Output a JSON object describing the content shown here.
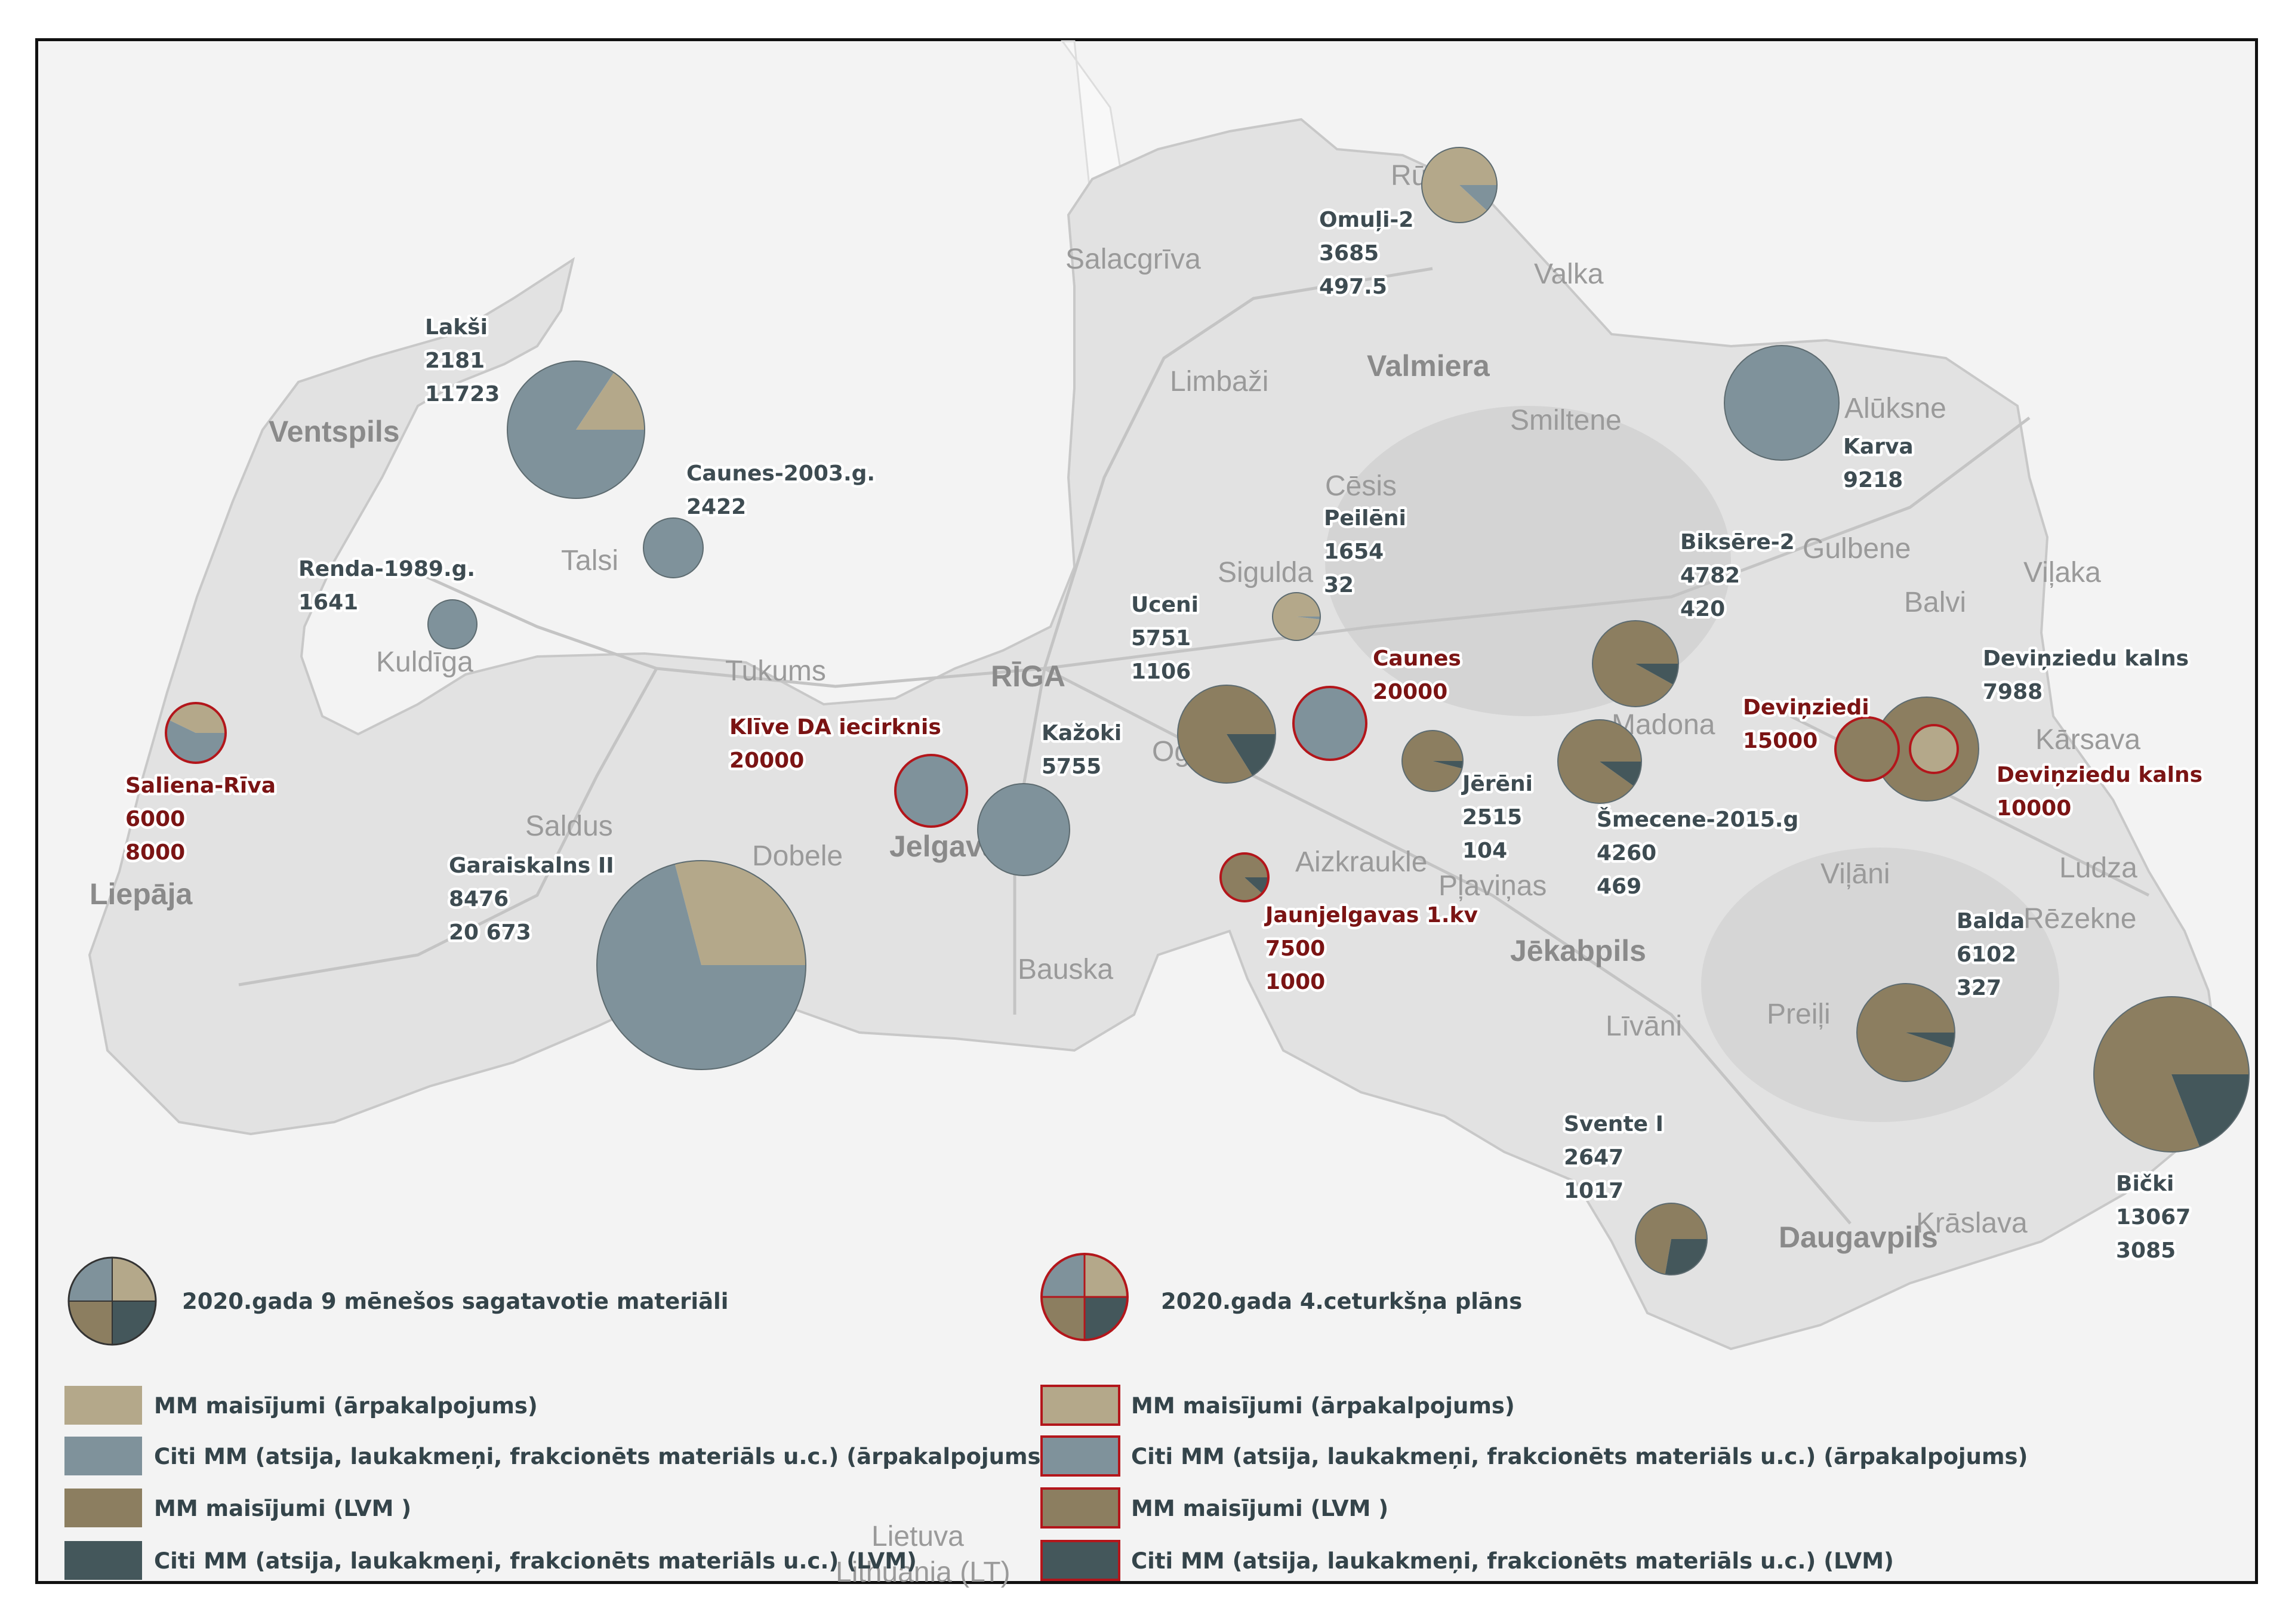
{
  "colors": {
    "mm_outsourced": "#b4a88a",
    "other_outsourced": "#7f929b",
    "mm_lvm": "#8c7e60",
    "other_lvm": "#44575b",
    "plan_border": "#b3161b",
    "label_actual": "#3e4c52",
    "label_plan": "#7b1414"
  },
  "map": {
    "cities": [
      "Ventspils",
      "Talsi",
      "Kuldīga",
      "Tukums",
      "RĪGA",
      "Saldus",
      "Dobele",
      "Jelgava",
      "Bauska",
      "Liepāja",
      "Salacgrīva",
      "Limbaži",
      "Valmiera",
      "Rūjiena",
      "Valka",
      "Smiltene",
      "Cēsis",
      "Sigulda",
      "Alūksne",
      "Gulbene",
      "Balvi",
      "Viļaka",
      "Madona",
      "Ogre",
      "Aizkraukle",
      "Pļaviņas",
      "Jēkabpils",
      "Līvāni",
      "Preiļi",
      "Viļāni",
      "Ludza",
      "Rēzekne",
      "Kārsava",
      "Daugavpils",
      "Krāslava",
      "Lietuva",
      "Lithuania (LT)"
    ]
  },
  "sites": [
    {
      "name": "Omuļi-2",
      "values": [
        "3685",
        "497.5"
      ],
      "type": "actual",
      "slices": [
        {
          "c": "mm_outsourced",
          "v": 3685
        },
        {
          "c": "other_outsourced",
          "v": 497.5
        }
      ]
    },
    {
      "name": "Lakši",
      "values": [
        "2181",
        "11723"
      ],
      "type": "actual",
      "slices": [
        {
          "c": "mm_outsourced",
          "v": 2181
        },
        {
          "c": "other_outsourced",
          "v": 11723
        }
      ]
    },
    {
      "name": "Caunes-2003.g.",
      "values": [
        "2422"
      ],
      "type": "actual",
      "slices": [
        {
          "c": "other_outsourced",
          "v": 2422
        }
      ]
    },
    {
      "name": "Renda-1989.g.",
      "values": [
        "1641"
      ],
      "type": "actual",
      "slices": [
        {
          "c": "other_outsourced",
          "v": 1641
        }
      ]
    },
    {
      "name": "Saliena-Rīva",
      "values": [
        "6000",
        "8000"
      ],
      "type": "plan",
      "slices": [
        {
          "c": "mm_outsourced",
          "v": 6000
        },
        {
          "c": "other_outsourced",
          "v": 8000
        }
      ]
    },
    {
      "name": "Garaiskalns II",
      "values": [
        "8476",
        "20 673"
      ],
      "type": "actual",
      "slices": [
        {
          "c": "mm_outsourced",
          "v": 8476
        },
        {
          "c": "other_outsourced",
          "v": 20673
        }
      ]
    },
    {
      "name": "Klīve DA iecirknis",
      "values": [
        "20000"
      ],
      "type": "plan",
      "slices": [
        {
          "c": "other_outsourced",
          "v": 20000
        }
      ]
    },
    {
      "name": "Kažoki",
      "values": [
        "5755"
      ],
      "type": "actual",
      "slices": [
        {
          "c": "other_outsourced",
          "v": 5755
        }
      ]
    },
    {
      "name": "Uceni",
      "values": [
        "5751",
        "1106"
      ],
      "type": "actual",
      "slices": [
        {
          "c": "mm_lvm",
          "v": 5751
        },
        {
          "c": "other_lvm",
          "v": 1106
        }
      ]
    },
    {
      "name": "Peilēni",
      "values": [
        "1654",
        "32"
      ],
      "type": "actual",
      "slices": [
        {
          "c": "mm_outsourced",
          "v": 1654
        },
        {
          "c": "other_outsourced",
          "v": 32
        }
      ]
    },
    {
      "name": "Caunes",
      "values": [
        "20000"
      ],
      "type": "plan",
      "slices": [
        {
          "c": "other_outsourced",
          "v": 20000
        }
      ]
    },
    {
      "name": "Jaunjelgavas 1.kv",
      "values": [
        "7500",
        "1000"
      ],
      "type": "plan",
      "slices": [
        {
          "c": "mm_lvm",
          "v": 7500
        },
        {
          "c": "other_lvm",
          "v": 1000
        }
      ]
    },
    {
      "name": "Jērēni",
      "values": [
        "2515",
        "104"
      ],
      "type": "actual",
      "slices": [
        {
          "c": "mm_lvm",
          "v": 2515
        },
        {
          "c": "other_lvm",
          "v": 104
        }
      ]
    },
    {
      "name": "Biksēre-2",
      "values": [
        "4782",
        "420"
      ],
      "type": "actual",
      "slices": [
        {
          "c": "mm_lvm",
          "v": 4782
        },
        {
          "c": "other_lvm",
          "v": 420
        }
      ]
    },
    {
      "name": "Šmecene-2015.g",
      "values": [
        "4260",
        "469"
      ],
      "type": "actual",
      "slices": [
        {
          "c": "mm_lvm",
          "v": 4260
        },
        {
          "c": "other_lvm",
          "v": 469
        }
      ]
    },
    {
      "name": "Karva",
      "values": [
        "9218"
      ],
      "type": "actual",
      "slices": [
        {
          "c": "other_outsourced",
          "v": 9218
        }
      ]
    },
    {
      "name": "Deviņziedu kalns",
      "values": [
        "7988"
      ],
      "type": "actual",
      "slices": [
        {
          "c": "mm_lvm",
          "v": 7988
        }
      ]
    },
    {
      "name": "Deviņziedi",
      "values": [
        "15000"
      ],
      "type": "plan",
      "slices": [
        {
          "c": "mm_lvm",
          "v": 15000
        }
      ]
    },
    {
      "name": "Deviņziedu kalns",
      "values": [
        "10000"
      ],
      "type": "plan",
      "slices": [
        {
          "c": "mm_outsourced",
          "v": 10000
        }
      ]
    },
    {
      "name": "Balda",
      "values": [
        "6102",
        "327"
      ],
      "type": "actual",
      "slices": [
        {
          "c": "mm_lvm",
          "v": 6102
        },
        {
          "c": "other_lvm",
          "v": 327
        }
      ]
    },
    {
      "name": "Bički",
      "values": [
        "13067",
        "3085"
      ],
      "type": "actual",
      "slices": [
        {
          "c": "mm_lvm",
          "v": 13067
        },
        {
          "c": "other_lvm",
          "v": 3085
        }
      ]
    },
    {
      "name": "Svente I",
      "values": [
        "2647",
        "1017"
      ],
      "type": "actual",
      "slices": [
        {
          "c": "mm_lvm",
          "v": 2647
        },
        {
          "c": "other_lvm",
          "v": 1017
        }
      ]
    }
  ],
  "legend": {
    "actual_title": "2020.gada 9 mēnešos sagatavotie materiāli",
    "plan_title": "2020.gada 4.ceturkšņa plāns",
    "items": [
      {
        "label": "MM maisījumi (ārpakalpojums)",
        "color": "mm_outsourced"
      },
      {
        "label": "Citi MM (atsija, laukakmeņi, frakcionēts materiāls u.c.) (ārpakalpojums)",
        "color": "other_outsourced"
      },
      {
        "label": "MM maisījumi (LVM )",
        "color": "mm_lvm"
      },
      {
        "label": "Citi MM (atsija, laukakmeņi, frakcionēts materiāls u.c.) (LVM)",
        "color": "other_lvm"
      }
    ]
  }
}
